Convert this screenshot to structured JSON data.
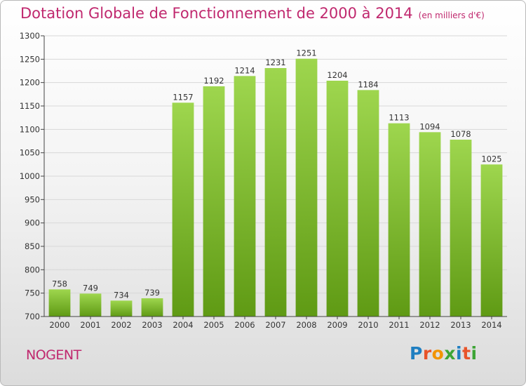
{
  "header": {
    "title": "Dotation Globale de Fonctionnement de 2000 à 2014",
    "unit": "(en milliers d'€)"
  },
  "footer": {
    "place": "NOGENT",
    "logo_text": "Proxiti"
  },
  "colors": {
    "title": "#c0286e",
    "bar_top": "#9ed64e",
    "bar_bottom": "#5f9a14",
    "grid": "#d8d8d8",
    "axis": "#444444"
  },
  "chart_data": {
    "type": "bar",
    "title": "Dotation Globale de Fonctionnement de 2000 à 2014",
    "subtitle": "(en milliers d'€)",
    "xlabel": "",
    "ylabel": "",
    "categories": [
      "2000",
      "2001",
      "2002",
      "2003",
      "2004",
      "2005",
      "2006",
      "2007",
      "2008",
      "2009",
      "2010",
      "2011",
      "2012",
      "2013",
      "2014"
    ],
    "values": [
      758,
      749,
      734,
      739,
      1157,
      1192,
      1214,
      1231,
      1251,
      1204,
      1184,
      1113,
      1094,
      1078,
      1025
    ],
    "ylim": [
      700,
      1300
    ],
    "yticks": [
      700,
      750,
      800,
      850,
      900,
      950,
      1000,
      1050,
      1100,
      1150,
      1200,
      1250,
      1300
    ],
    "grid": true,
    "legend": "none"
  }
}
